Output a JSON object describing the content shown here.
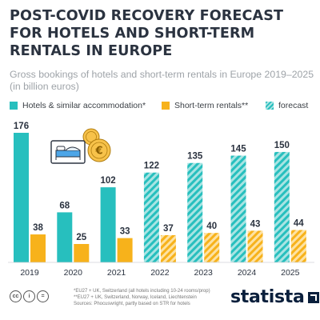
{
  "title_lines": [
    "POST-COVID RECOVERY FORECAST",
    "FOR HOTELS AND SHORT-TERM",
    "RENTALS IN EUROPE"
  ],
  "subtitle_lines": [
    "Gross bookings of hotels and short-term rentals in Europe 2019–2025",
    "(in billion euros)"
  ],
  "legend": {
    "hotels": "Hotels & similar accommodation*",
    "str": "Short-term rentals**",
    "forecast": "forecast"
  },
  "colors": {
    "hotels": "#27bfbe",
    "str": "#f7b21b",
    "hotels_forecast_stripe": "#a9e4e3",
    "str_forecast_stripe": "#fde2a3"
  },
  "chart_data": {
    "type": "bar",
    "categories": [
      "2019",
      "2020",
      "2021",
      "2022",
      "2023",
      "2024",
      "2025"
    ],
    "series": [
      {
        "name": "Hotels & similar accommodation*",
        "values": [
          176,
          68,
          102,
          122,
          135,
          145,
          150
        ]
      },
      {
        "name": "Short-term rentals**",
        "values": [
          38,
          25,
          33,
          37,
          40,
          43,
          44
        ]
      }
    ],
    "forecast_from": "2022",
    "title": "POST-COVID RECOVERY FORECAST FOR HOTELS AND SHORT-TERM RENTALS IN EUROPE",
    "ylabel": "",
    "ylim": [
      0,
      176
    ]
  },
  "footnotes": [
    "*EU27 + UK, Switzerland (all hotels including 10-24 rooms/prop)",
    "**EU27 + UK, Switzerland, Norway, Iceland, Liechtenstein",
    "Sources: Phocuswright, partly based on STR for hotels"
  ],
  "license_icons": [
    "cc",
    "i",
    "="
  ],
  "brand": "statista"
}
